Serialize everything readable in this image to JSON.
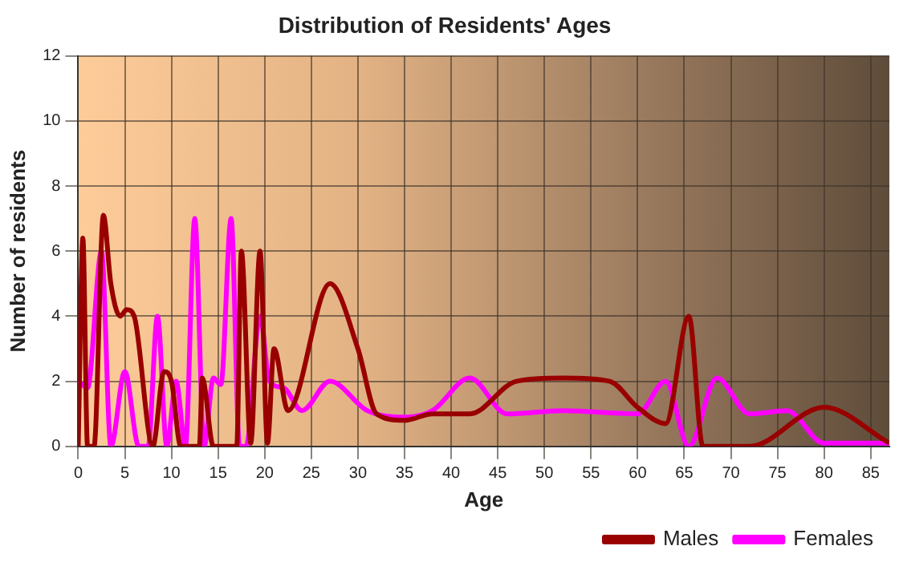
{
  "chart_data": {
    "type": "line",
    "title": "Distribution of Residents' Ages",
    "xlabel": "Age",
    "ylabel": "Number of residents",
    "xlim": [
      0,
      87
    ],
    "xticks": [
      0,
      5,
      10,
      15,
      20,
      25,
      30,
      35,
      40,
      45,
      50,
      55,
      60,
      65,
      70,
      75,
      80,
      85
    ],
    "ylim": [
      0,
      12
    ],
    "yticks": [
      0,
      2,
      4,
      6,
      8,
      10,
      12
    ],
    "grid": true,
    "legend": "bottom",
    "marker": "none",
    "line_style": "solid",
    "series": [
      {
        "name": "Males",
        "color": "#990000",
        "x": [
          0,
          0.5,
          1,
          1.7,
          2.7,
          3.5,
          4.5,
          5.2,
          6,
          8,
          9.2,
          10,
          11,
          13,
          13.3,
          14.5,
          17,
          17.5,
          18.5,
          19.5,
          20.3,
          21,
          22.5,
          27,
          30,
          32,
          35,
          38,
          42,
          47,
          52,
          57,
          60,
          63,
          65.5,
          67,
          72,
          80,
          87
        ],
        "values": [
          0,
          6.4,
          0,
          0,
          7.1,
          5,
          4,
          4.2,
          4,
          0,
          2.3,
          2,
          0,
          0,
          2.1,
          0,
          0,
          6,
          0.1,
          6,
          0.1,
          3,
          1.1,
          5,
          3,
          1,
          0.8,
          1,
          1,
          2,
          2.1,
          2,
          1.2,
          0.7,
          4,
          0,
          0,
          1.2,
          0.1
        ]
      },
      {
        "name": "Females",
        "color": "#ff00ff",
        "x": [
          0,
          1,
          2.5,
          3.5,
          5,
          6.5,
          7.5,
          8.5,
          9.5,
          10.5,
          11.5,
          12.5,
          13.5,
          14.5,
          15.3,
          16.4,
          17.3,
          18,
          19.5,
          20.5,
          22,
          24,
          27,
          31,
          35,
          38,
          42,
          46,
          52,
          60,
          63,
          65.5,
          68.5,
          72,
          76,
          80,
          87
        ],
        "values": [
          2,
          1.8,
          6,
          0,
          2.3,
          0,
          0,
          4,
          0,
          2,
          0,
          7,
          0,
          2.1,
          1.9,
          7,
          0,
          0,
          4,
          2,
          1.8,
          1.1,
          2,
          1.1,
          0.9,
          1.1,
          2.1,
          1,
          1.1,
          1,
          2,
          0,
          2.1,
          1,
          1.1,
          0.1,
          0.1
        ]
      }
    ]
  }
}
